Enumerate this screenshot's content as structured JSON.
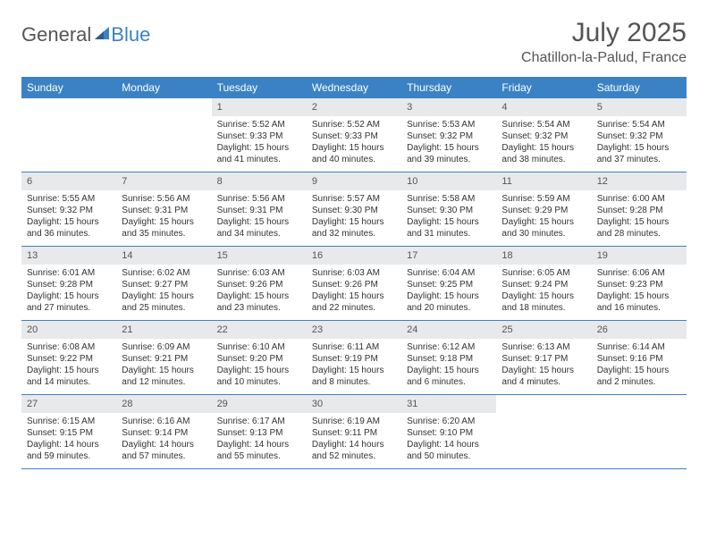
{
  "logo": {
    "part1": "General",
    "part2": "Blue"
  },
  "title": "July 2025",
  "location": "Chatillon-la-Palud, France",
  "colors": {
    "header_bg": "#3b82c4",
    "header_text": "#ffffff",
    "daynum_bg": "#e8e9ea",
    "text": "#333333",
    "border": "#3b82c4"
  },
  "fonts": {
    "title_size": 30,
    "location_size": 16,
    "dow_size": 12,
    "body_size": 10
  },
  "dow": [
    "Sunday",
    "Monday",
    "Tuesday",
    "Wednesday",
    "Thursday",
    "Friday",
    "Saturday"
  ],
  "weeks": [
    [
      {
        "n": "",
        "sunrise": "",
        "sunset": "",
        "daylight": ""
      },
      {
        "n": "",
        "sunrise": "",
        "sunset": "",
        "daylight": ""
      },
      {
        "n": "1",
        "sunrise": "Sunrise: 5:52 AM",
        "sunset": "Sunset: 9:33 PM",
        "daylight": "Daylight: 15 hours and 41 minutes."
      },
      {
        "n": "2",
        "sunrise": "Sunrise: 5:52 AM",
        "sunset": "Sunset: 9:33 PM",
        "daylight": "Daylight: 15 hours and 40 minutes."
      },
      {
        "n": "3",
        "sunrise": "Sunrise: 5:53 AM",
        "sunset": "Sunset: 9:32 PM",
        "daylight": "Daylight: 15 hours and 39 minutes."
      },
      {
        "n": "4",
        "sunrise": "Sunrise: 5:54 AM",
        "sunset": "Sunset: 9:32 PM",
        "daylight": "Daylight: 15 hours and 38 minutes."
      },
      {
        "n": "5",
        "sunrise": "Sunrise: 5:54 AM",
        "sunset": "Sunset: 9:32 PM",
        "daylight": "Daylight: 15 hours and 37 minutes."
      }
    ],
    [
      {
        "n": "6",
        "sunrise": "Sunrise: 5:55 AM",
        "sunset": "Sunset: 9:32 PM",
        "daylight": "Daylight: 15 hours and 36 minutes."
      },
      {
        "n": "7",
        "sunrise": "Sunrise: 5:56 AM",
        "sunset": "Sunset: 9:31 PM",
        "daylight": "Daylight: 15 hours and 35 minutes."
      },
      {
        "n": "8",
        "sunrise": "Sunrise: 5:56 AM",
        "sunset": "Sunset: 9:31 PM",
        "daylight": "Daylight: 15 hours and 34 minutes."
      },
      {
        "n": "9",
        "sunrise": "Sunrise: 5:57 AM",
        "sunset": "Sunset: 9:30 PM",
        "daylight": "Daylight: 15 hours and 32 minutes."
      },
      {
        "n": "10",
        "sunrise": "Sunrise: 5:58 AM",
        "sunset": "Sunset: 9:30 PM",
        "daylight": "Daylight: 15 hours and 31 minutes."
      },
      {
        "n": "11",
        "sunrise": "Sunrise: 5:59 AM",
        "sunset": "Sunset: 9:29 PM",
        "daylight": "Daylight: 15 hours and 30 minutes."
      },
      {
        "n": "12",
        "sunrise": "Sunrise: 6:00 AM",
        "sunset": "Sunset: 9:28 PM",
        "daylight": "Daylight: 15 hours and 28 minutes."
      }
    ],
    [
      {
        "n": "13",
        "sunrise": "Sunrise: 6:01 AM",
        "sunset": "Sunset: 9:28 PM",
        "daylight": "Daylight: 15 hours and 27 minutes."
      },
      {
        "n": "14",
        "sunrise": "Sunrise: 6:02 AM",
        "sunset": "Sunset: 9:27 PM",
        "daylight": "Daylight: 15 hours and 25 minutes."
      },
      {
        "n": "15",
        "sunrise": "Sunrise: 6:03 AM",
        "sunset": "Sunset: 9:26 PM",
        "daylight": "Daylight: 15 hours and 23 minutes."
      },
      {
        "n": "16",
        "sunrise": "Sunrise: 6:03 AM",
        "sunset": "Sunset: 9:26 PM",
        "daylight": "Daylight: 15 hours and 22 minutes."
      },
      {
        "n": "17",
        "sunrise": "Sunrise: 6:04 AM",
        "sunset": "Sunset: 9:25 PM",
        "daylight": "Daylight: 15 hours and 20 minutes."
      },
      {
        "n": "18",
        "sunrise": "Sunrise: 6:05 AM",
        "sunset": "Sunset: 9:24 PM",
        "daylight": "Daylight: 15 hours and 18 minutes."
      },
      {
        "n": "19",
        "sunrise": "Sunrise: 6:06 AM",
        "sunset": "Sunset: 9:23 PM",
        "daylight": "Daylight: 15 hours and 16 minutes."
      }
    ],
    [
      {
        "n": "20",
        "sunrise": "Sunrise: 6:08 AM",
        "sunset": "Sunset: 9:22 PM",
        "daylight": "Daylight: 15 hours and 14 minutes."
      },
      {
        "n": "21",
        "sunrise": "Sunrise: 6:09 AM",
        "sunset": "Sunset: 9:21 PM",
        "daylight": "Daylight: 15 hours and 12 minutes."
      },
      {
        "n": "22",
        "sunrise": "Sunrise: 6:10 AM",
        "sunset": "Sunset: 9:20 PM",
        "daylight": "Daylight: 15 hours and 10 minutes."
      },
      {
        "n": "23",
        "sunrise": "Sunrise: 6:11 AM",
        "sunset": "Sunset: 9:19 PM",
        "daylight": "Daylight: 15 hours and 8 minutes."
      },
      {
        "n": "24",
        "sunrise": "Sunrise: 6:12 AM",
        "sunset": "Sunset: 9:18 PM",
        "daylight": "Daylight: 15 hours and 6 minutes."
      },
      {
        "n": "25",
        "sunrise": "Sunrise: 6:13 AM",
        "sunset": "Sunset: 9:17 PM",
        "daylight": "Daylight: 15 hours and 4 minutes."
      },
      {
        "n": "26",
        "sunrise": "Sunrise: 6:14 AM",
        "sunset": "Sunset: 9:16 PM",
        "daylight": "Daylight: 15 hours and 2 minutes."
      }
    ],
    [
      {
        "n": "27",
        "sunrise": "Sunrise: 6:15 AM",
        "sunset": "Sunset: 9:15 PM",
        "daylight": "Daylight: 14 hours and 59 minutes."
      },
      {
        "n": "28",
        "sunrise": "Sunrise: 6:16 AM",
        "sunset": "Sunset: 9:14 PM",
        "daylight": "Daylight: 14 hours and 57 minutes."
      },
      {
        "n": "29",
        "sunrise": "Sunrise: 6:17 AM",
        "sunset": "Sunset: 9:13 PM",
        "daylight": "Daylight: 14 hours and 55 minutes."
      },
      {
        "n": "30",
        "sunrise": "Sunrise: 6:19 AM",
        "sunset": "Sunset: 9:11 PM",
        "daylight": "Daylight: 14 hours and 52 minutes."
      },
      {
        "n": "31",
        "sunrise": "Sunrise: 6:20 AM",
        "sunset": "Sunset: 9:10 PM",
        "daylight": "Daylight: 14 hours and 50 minutes."
      },
      {
        "n": "",
        "sunrise": "",
        "sunset": "",
        "daylight": ""
      },
      {
        "n": "",
        "sunrise": "",
        "sunset": "",
        "daylight": ""
      }
    ]
  ]
}
